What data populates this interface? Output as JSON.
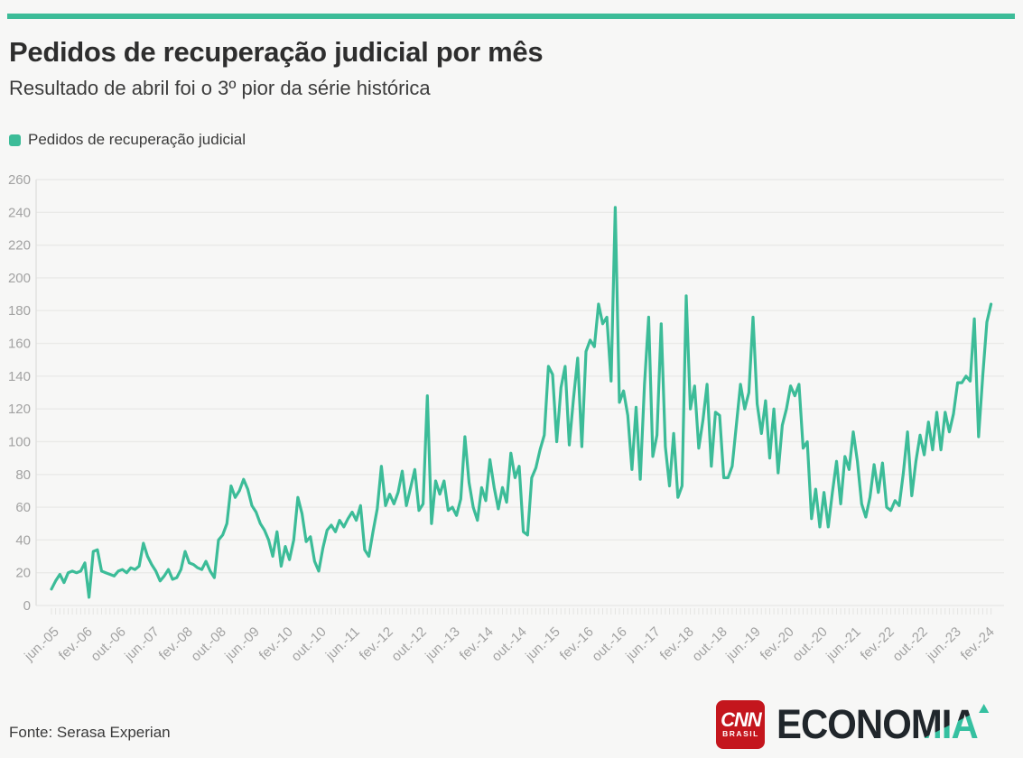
{
  "header": {
    "title": "Pedidos de recuperação judicial por mês",
    "subtitle": "Resultado de abril foi o 3º pior da série histórica"
  },
  "legend": {
    "label": "Pedidos de recuperação judicial"
  },
  "footer": {
    "source": "Fonte: Serasa Experian",
    "cnn": "CNN",
    "cnn_sub": "BRASIL",
    "wordmark_dark": "ECONO",
    "wordmark_accent": "MIA"
  },
  "colors": {
    "accent": "#3cbc98",
    "line": "#3cbc98",
    "grid": "#eaeae8",
    "axis_line": "#e0e0de",
    "tick": "#e4e4e2",
    "axis_text": "#a2a2a2",
    "background": "#f7f7f6",
    "cnn_red": "#c4161d",
    "wordmark_dark": "#20262b"
  },
  "chart_data": {
    "type": "line",
    "title": "Pedidos de recuperação judicial por mês",
    "series_name": "Pedidos de recuperação judicial",
    "x_start": "jun/2005",
    "x_end": "abr/2024",
    "x_interval": "monthly",
    "tick_labels": [
      "jun.-05",
      "fev.-06",
      "out.-06",
      "jun.-07",
      "fev.-08",
      "out.-08",
      "jun.-09",
      "fev.-10",
      "out.-10",
      "jun.-11",
      "fev.-12",
      "out.-12",
      "jun.-13",
      "fev.-14",
      "out.-14",
      "jun.-15",
      "fev.-16",
      "out.-16",
      "jun.-17",
      "fev.-18",
      "out.-18",
      "jun.-19",
      "fev.-20",
      "out.-20",
      "jun.-21",
      "fev.-22",
      "out.-22",
      "jun.-23",
      "fev.-24"
    ],
    "y_ticks": [
      0,
      20,
      40,
      60,
      80,
      100,
      120,
      140,
      160,
      180,
      200,
      220,
      240,
      260
    ],
    "ylim": [
      0,
      260
    ],
    "grid": true,
    "legend_position": "top-left",
    "values": [
      10,
      15,
      19,
      14,
      20,
      21,
      20,
      21,
      26,
      5,
      33,
      34,
      21,
      20,
      19,
      18,
      21,
      22,
      20,
      23,
      22,
      24,
      38,
      30,
      25,
      21,
      15,
      18,
      22,
      16,
      17,
      22,
      33,
      26,
      25,
      23,
      22,
      27,
      21,
      17,
      40,
      43,
      50,
      73,
      66,
      70,
      77,
      71,
      61,
      57,
      50,
      46,
      40,
      30,
      45,
      24,
      36,
      28,
      40,
      66,
      56,
      39,
      42,
      27,
      21,
      35,
      46,
      49,
      45,
      52,
      48,
      53,
      57,
      52,
      61,
      34,
      30,
      45,
      59,
      85,
      61,
      68,
      62,
      69,
      82,
      61,
      72,
      83,
      58,
      62,
      128,
      50,
      76,
      68,
      76,
      58,
      60,
      55,
      65,
      103,
      75,
      60,
      52,
      72,
      64,
      89,
      72,
      59,
      72,
      63,
      93,
      78,
      85,
      45,
      43,
      78,
      84,
      95,
      104,
      146,
      141,
      100,
      133,
      146,
      98,
      126,
      151,
      97,
      155,
      162,
      158,
      184,
      172,
      176,
      137,
      243,
      124,
      131,
      116,
      83,
      121,
      77,
      135,
      176,
      91,
      104,
      172,
      97,
      73,
      105,
      66,
      73,
      189,
      120,
      134,
      96,
      113,
      135,
      85,
      118,
      116,
      78,
      78,
      85,
      110,
      135,
      120,
      130,
      176,
      123,
      105,
      125,
      90,
      120,
      81,
      110,
      120,
      134,
      128,
      135,
      96,
      100,
      53,
      71,
      48,
      69,
      48,
      69,
      88,
      62,
      91,
      83,
      106,
      88,
      62,
      54,
      66,
      86,
      69,
      87,
      60,
      58,
      64,
      61,
      81,
      106,
      67,
      88,
      104,
      92,
      112,
      95,
      118,
      95,
      118,
      106,
      117,
      136,
      136,
      140,
      137,
      175,
      103,
      140,
      173,
      184
    ]
  }
}
